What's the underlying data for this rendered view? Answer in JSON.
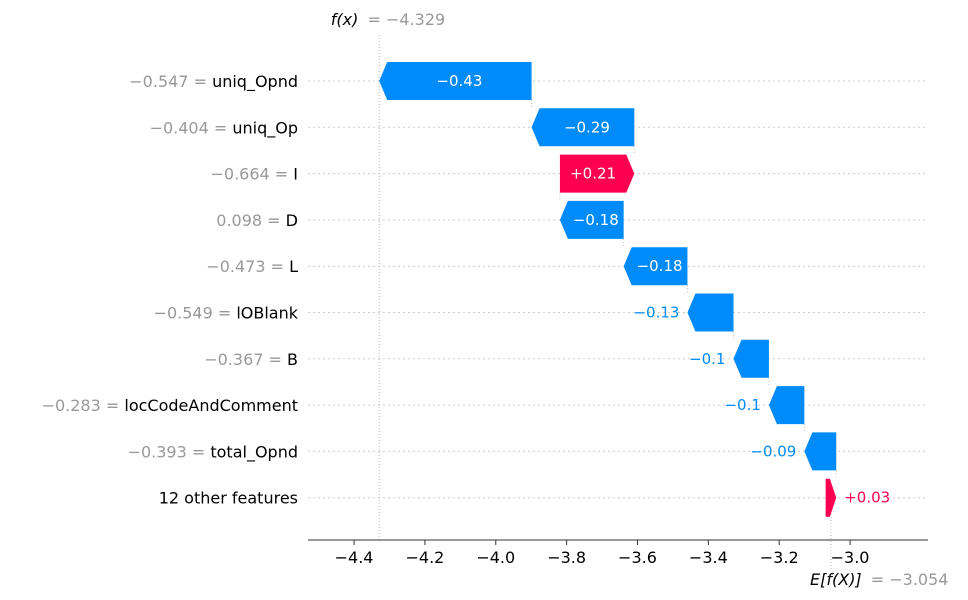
{
  "chart_data": {
    "type": "waterfall",
    "fx_label": "f(x)",
    "fx_value": "= −4.329",
    "fx": -4.329,
    "efx_label": "E[f(X)]",
    "efx_value": "= −3.054",
    "efx": -3.054,
    "xlim": [
      -4.53,
      -2.78
    ],
    "xticks": [
      -4.4,
      -4.2,
      -4.0,
      -3.8,
      -3.6,
      -3.4,
      -3.2,
      -3.0
    ],
    "xtick_labels": [
      "−4.4",
      "−4.2",
      "−4.0",
      "−3.8",
      "−3.6",
      "−3.4",
      "−3.2",
      "−3.0"
    ],
    "features": [
      {
        "value": "−0.547 =",
        "name": "uniq_Opnd",
        "contribution": -0.43,
        "label": "−0.43"
      },
      {
        "value": "−0.404 =",
        "name": "uniq_Op",
        "contribution": -0.29,
        "label": "−0.29"
      },
      {
        "value": "−0.664 =",
        "name": "I",
        "contribution": 0.21,
        "label": "+0.21"
      },
      {
        "value": "0.098 =",
        "name": "D",
        "contribution": -0.18,
        "label": "−0.18"
      },
      {
        "value": "−0.473 =",
        "name": "L",
        "contribution": -0.18,
        "label": "−0.18"
      },
      {
        "value": "−0.549 =",
        "name": "lOBlank",
        "contribution": -0.13,
        "label": "−0.13"
      },
      {
        "value": "−0.367 =",
        "name": "B",
        "contribution": -0.1,
        "label": "−0.1"
      },
      {
        "value": "−0.283 =",
        "name": "locCodeAndComment",
        "contribution": -0.1,
        "label": "−0.1"
      },
      {
        "value": "−0.393 =",
        "name": "total_Opnd",
        "contribution": -0.09,
        "label": "−0.09"
      },
      {
        "value": "",
        "name": "12 other features",
        "contribution": 0.03,
        "label": "+0.03"
      }
    ],
    "colors": {
      "negative": "#008bfb",
      "positive": "#ff0051",
      "value_text": "#999999",
      "grid": "#cccccc"
    }
  }
}
